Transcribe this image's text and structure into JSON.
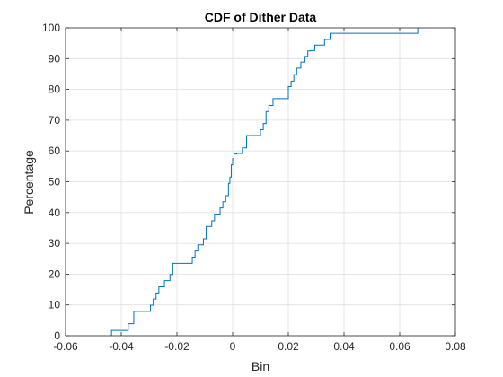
{
  "chart_data": {
    "type": "line",
    "subtype": "stairs",
    "title": "CDF of Dither Data",
    "xlabel": "Bin",
    "ylabel": "Percentage",
    "xlim": [
      -0.06,
      0.08
    ],
    "ylim": [
      0,
      100
    ],
    "xticks": [
      -0.06,
      -0.04,
      -0.02,
      0,
      0.02,
      0.04,
      0.06,
      0.08
    ],
    "xtick_labels": [
      "-0.06",
      "-0.04",
      "-0.02",
      "0",
      "0.02",
      "0.04",
      "0.06",
      "0.08"
    ],
    "yticks": [
      0,
      10,
      20,
      30,
      40,
      50,
      60,
      70,
      80,
      90,
      100
    ],
    "ytick_labels": [
      "0",
      "10",
      "20",
      "30",
      "40",
      "50",
      "60",
      "70",
      "80",
      "90",
      "100"
    ],
    "grid": true,
    "line_color": "#0072bd",
    "series": [
      {
        "x": [
          -0.0435,
          -0.0375,
          -0.0355,
          -0.0295,
          -0.0285,
          -0.0275,
          -0.0265,
          -0.0245,
          -0.0225,
          -0.0215,
          -0.0145,
          -0.0135,
          -0.0125,
          -0.0105,
          -0.0095,
          -0.0075,
          -0.0065,
          -0.0045,
          -0.0035,
          -0.0025,
          -0.0015,
          -0.001,
          -0.0005,
          0.0,
          0.0005,
          0.0015,
          0.0035,
          0.005,
          0.01,
          0.011,
          0.012,
          0.013,
          0.0145,
          0.02,
          0.021,
          0.022,
          0.023,
          0.0245,
          0.026,
          0.027,
          0.028,
          0.0295,
          0.033,
          0.035,
          0.037,
          0.0665
        ],
        "y": [
          1.7,
          3.9,
          7.9,
          9.9,
          11.9,
          13.9,
          15.9,
          17.9,
          19.9,
          23.5,
          25.5,
          27.5,
          29.5,
          31.5,
          35.5,
          37.3,
          39.5,
          41.5,
          43.5,
          45.5,
          49.5,
          51.5,
          55.5,
          57.5,
          59.0,
          59.2,
          61.0,
          65.0,
          66.9,
          68.9,
          72.8,
          74.8,
          77.0,
          80.9,
          82.7,
          84.8,
          86.9,
          88.9,
          90.7,
          92.5,
          92.6,
          94.4,
          96.2,
          98.2,
          98.2,
          100.0
        ]
      }
    ]
  }
}
